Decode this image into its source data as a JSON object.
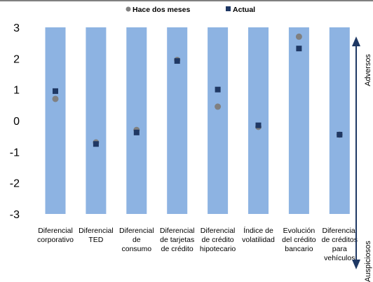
{
  "chart_data": {
    "type": "scatter",
    "categories": [
      [
        "Diferencial",
        "corporativo"
      ],
      [
        "Diferencial",
        "TED"
      ],
      [
        "Diferencial",
        "de",
        "consumo"
      ],
      [
        "Diferencial",
        "de tarjetas",
        "de crédito"
      ],
      [
        "Diferencial",
        "de crédito",
        "hipotecario"
      ],
      [
        "Índice de",
        "volatilidad"
      ],
      [
        "Evolución",
        "del crédito",
        "bancario"
      ],
      [
        "Diferencial",
        "de créditos",
        "para",
        "vehículos"
      ]
    ],
    "ylim": [
      -3,
      3
    ],
    "yticks": [
      "3",
      "2",
      "1",
      "0",
      "-1",
      "-2",
      "-3"
    ],
    "range_bars": {
      "low": -3,
      "high": 3,
      "color": "#8DB3E2"
    },
    "series": [
      {
        "name": "Hace dos meses",
        "marker": "circle",
        "color": "#808080",
        "values": [
          0.7,
          -0.7,
          -0.3,
          1.95,
          0.45,
          -0.2,
          2.7,
          -0.45
        ]
      },
      {
        "name": "Actual",
        "marker": "square",
        "color": "#1F3864",
        "values": [
          0.95,
          -0.75,
          -0.38,
          1.92,
          1.0,
          -0.15,
          2.32,
          -0.45
        ]
      }
    ],
    "side_labels": {
      "top": "Adversos",
      "bottom": "Auspiciosos"
    },
    "legend_position": "top",
    "grid": false
  }
}
